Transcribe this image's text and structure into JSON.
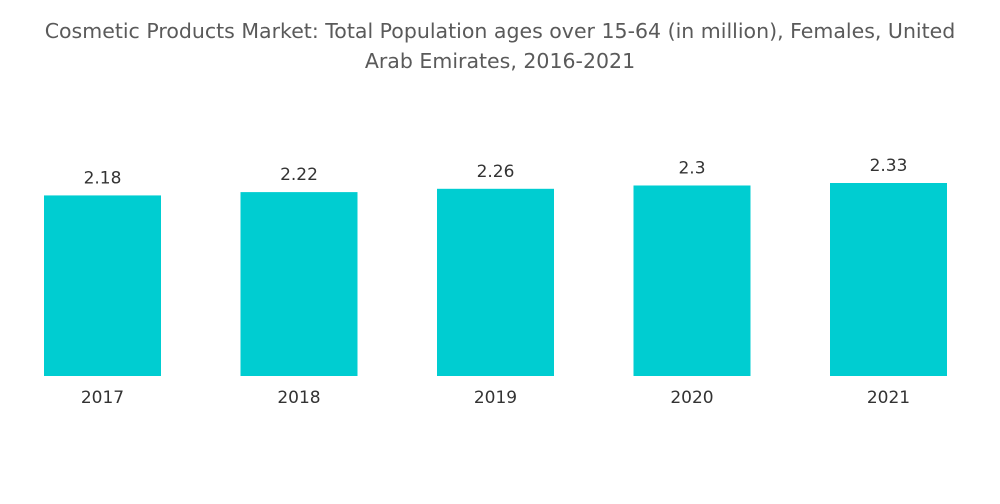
{
  "chart_data": {
    "type": "bar",
    "title": "Cosmetic Products Market: Total Population ages over 15-64 (in million), Females, United Arab Emirates, 2016-2021",
    "categories": [
      "2017",
      "2018",
      "2019",
      "2020",
      "2021"
    ],
    "values": [
      2.18,
      2.22,
      2.26,
      2.3,
      2.33
    ],
    "value_labels": [
      "2.18",
      "2.22",
      "2.26",
      "2.3",
      "2.33"
    ],
    "xlabel": "",
    "ylabel": "",
    "ylim": [
      0,
      2.33
    ],
    "grid": false,
    "legend": "none",
    "bar_color": "#00cdd1"
  }
}
